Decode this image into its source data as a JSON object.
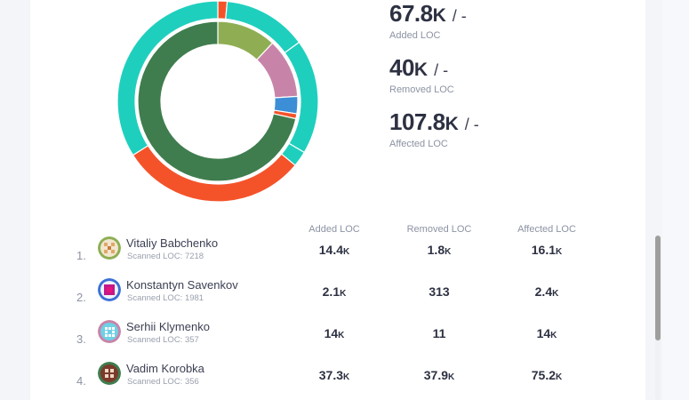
{
  "colors": {
    "teal": "#1fcfbe",
    "dark_green": "#3f7d4e",
    "orange_red": "#f4532a",
    "olive": "#8fae54",
    "pink": "#c884a8",
    "blue": "#3c8ed6"
  },
  "chart_data": {
    "type": "pie",
    "title": "",
    "rings": [
      {
        "name": "outer",
        "values": [
          1.5,
          13.5,
          18.5,
          2.5,
          30,
          34
        ],
        "colors": [
          "#f4532a",
          "#1fcfbe",
          "#1fcfbe",
          "#1fcfbe",
          "#f4532a",
          "#1fcfbe"
        ]
      },
      {
        "name": "inner",
        "values": [
          12,
          12,
          3.5,
          1,
          71.5
        ],
        "colors": [
          "#8fae54",
          "#c884a8",
          "#3c8ed6",
          "#f4532a",
          "#3f7d4e"
        ]
      }
    ]
  },
  "metrics": [
    {
      "value": "67.8",
      "unit": "K",
      "separator": "/ -",
      "label": "Added LOC"
    },
    {
      "value": "40",
      "unit": "K",
      "separator": "/ -",
      "label": "Removed LOC"
    },
    {
      "value": "107.8",
      "unit": "K",
      "separator": "/ -",
      "label": "Affected LOC"
    }
  ],
  "table": {
    "headers": [
      "Added LOC",
      "Removed LOC",
      "Affected LOC"
    ],
    "rows": [
      {
        "index": "1.",
        "name": "Vitaliy Babchenko",
        "scanned": "Scanned LOC: 7218",
        "added": "14.4",
        "added_unit": "K",
        "removed": "1.8",
        "removed_unit": "K",
        "affected": "16.1",
        "affected_unit": "K"
      },
      {
        "index": "2.",
        "name": "Konstantyn Savenkov",
        "scanned": "Scanned LOC: 1981",
        "added": "2.1",
        "added_unit": "K",
        "removed": "313",
        "removed_unit": "",
        "affected": "2.4",
        "affected_unit": "K"
      },
      {
        "index": "3.",
        "name": "Serhii Klymenko",
        "scanned": "Scanned LOC: 357",
        "added": "14",
        "added_unit": "K",
        "removed": "11",
        "removed_unit": "",
        "affected": "14",
        "affected_unit": "K"
      },
      {
        "index": "4.",
        "name": "Vadim Korobka",
        "scanned": "Scanned LOC: 356",
        "added": "37.3",
        "added_unit": "K",
        "removed": "37.9",
        "removed_unit": "K",
        "affected": "75.2",
        "affected_unit": "K"
      }
    ]
  }
}
